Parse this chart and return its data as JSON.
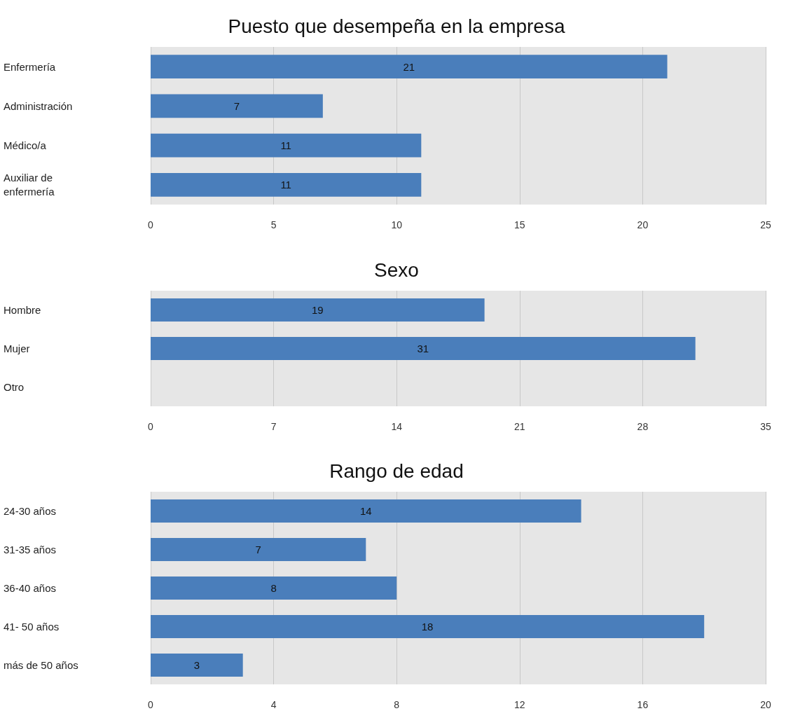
{
  "chart_data": [
    {
      "type": "bar",
      "orientation": "horizontal",
      "title": "Puesto que desempeña en la empresa",
      "categories": [
        "Enfermería",
        "Administración",
        "Médico/a",
        "Auxiliar de\nenfermería"
      ],
      "values": [
        21,
        7,
        11,
        11
      ],
      "color": "#4a7ebb",
      "xlim": [
        0,
        25
      ],
      "xticks": [
        0,
        5,
        10,
        15,
        20,
        25
      ],
      "grid": "x",
      "data_labels": true
    },
    {
      "type": "bar",
      "orientation": "horizontal",
      "title": "Sexo",
      "categories": [
        "Hombre",
        "Mujer",
        "Otro"
      ],
      "values": [
        19,
        31,
        null
      ],
      "color": "#4a7ebb",
      "xlim": [
        0,
        35
      ],
      "xticks": [
        0,
        7,
        14,
        21,
        28,
        35
      ],
      "grid": "x",
      "data_labels": true
    },
    {
      "type": "bar",
      "orientation": "horizontal",
      "title": "Rango de edad",
      "categories": [
        "24-30 años",
        "31-35 años",
        "36-40 años",
        "41- 50 años",
        "más de 50 años"
      ],
      "values": [
        14,
        7,
        8,
        18,
        3
      ],
      "color": "#4a7ebb",
      "xlim": [
        0,
        20
      ],
      "xticks": [
        0,
        4,
        8,
        12,
        16,
        20
      ],
      "grid": "x",
      "data_labels": true
    }
  ]
}
